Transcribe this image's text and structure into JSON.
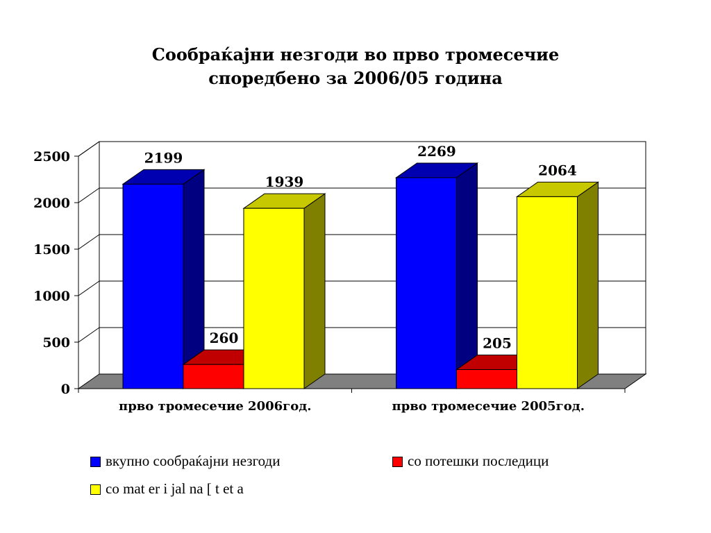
{
  "title_lines": [
    "Сообраќајни незгоди во прво тромесечие",
    "споредбено за 2006/05 година"
  ],
  "chart_data": {
    "type": "bar",
    "title": "Сообраќајни незгоди во прво тромесечие споредбено за 2006/05 година",
    "categories": [
      "прво тромесечие 2006год.",
      "прво тромесечие 2005год."
    ],
    "series": [
      {
        "name": "вкупно сообраќајни незгоди",
        "values": [
          2199,
          2269
        ],
        "color": "#0000ff"
      },
      {
        "name": "со потешки последици",
        "values": [
          260,
          205
        ],
        "color": "#ff0000"
      },
      {
        "name": "со mat er i jal na [  t et a",
        "values": [
          1939,
          2064
        ],
        "color": "#ffff00"
      }
    ],
    "data_labels": [
      [
        "2199",
        "2269"
      ],
      [
        "260",
        "205"
      ],
      [
        "1939",
        "2064"
      ]
    ],
    "yticks": [
      "0",
      "500",
      "1000",
      "1500",
      "2000",
      "2500"
    ],
    "ylim": [
      0,
      2500
    ],
    "grid": true,
    "three_d": true,
    "legend_position": "bottom"
  }
}
